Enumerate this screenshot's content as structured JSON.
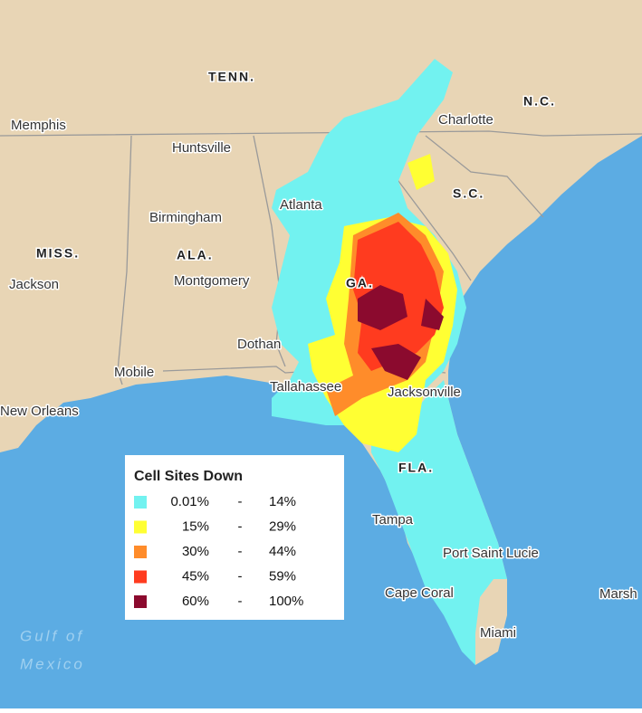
{
  "places": [
    "Memphis",
    "Huntsville",
    "Birmingham",
    "Montgomery",
    "Jackson",
    "Atlanta",
    "Dothan",
    "Mobile",
    "Tallahassee",
    "Jacksonville",
    "New Orleans",
    "Tampa",
    "Port Saint Lucie",
    "Cape Coral",
    "Miami",
    "Charlotte",
    "Marsh"
  ],
  "states": [
    "TENN.",
    "N.C.",
    "S.C.",
    "MISS.",
    "ALA.",
    "GA.",
    "FLA."
  ],
  "water_labels": [
    "Gulf of",
    "Mexico"
  ],
  "legend": {
    "title": "Cell Sites Down",
    "items": [
      {
        "color": "#72f2f0",
        "low": "0.01%",
        "separator": "-",
        "high": "14%"
      },
      {
        "color": "#ffff33",
        "low": "15%",
        "separator": "-",
        "high": "29%"
      },
      {
        "color": "#ff8c2a",
        "low": "30%",
        "separator": "-",
        "high": "44%"
      },
      {
        "color": "#ff3b1f",
        "low": "45%",
        "separator": "-",
        "high": "59%"
      },
      {
        "color": "#8b0a2e",
        "low": "60%",
        "separator": "-",
        "high": "100%"
      }
    ]
  }
}
